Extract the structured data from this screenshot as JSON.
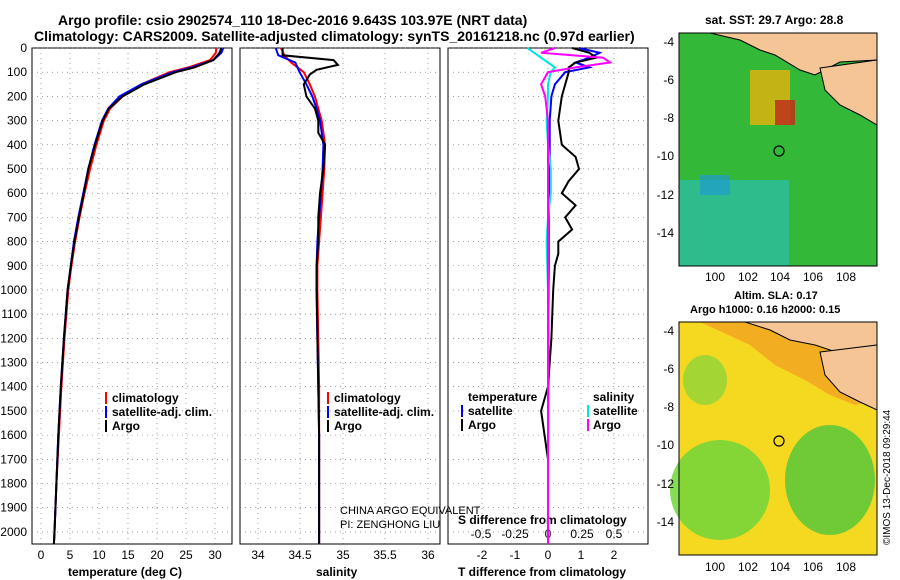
{
  "header": {
    "title_line1": "Argo profile: csio 2902574_110 18-Dec-2016 9.643S 103.97E (NRT data)",
    "title_line2": "Climatology: CARS2009. Satellite-adjusted climatology: synTS_20161218.nc (0.97d earlier)"
  },
  "colors": {
    "climatology": "#ff0000",
    "satellite": "#0000ff",
    "argo": "#000000",
    "satellite_sal": "#00e5e5",
    "argo_sal": "#ff00ff"
  },
  "depth_ticks": [
    0,
    100,
    200,
    300,
    400,
    500,
    600,
    700,
    800,
    900,
    1000,
    1100,
    1200,
    1300,
    1400,
    1500,
    1600,
    1700,
    1800,
    1900,
    2000
  ],
  "temperature_panel": {
    "xlabel": "temperature (deg C)",
    "x_ticks": [
      "0",
      "5",
      "10",
      "15",
      "20",
      "25",
      "30"
    ],
    "legend": {
      "climatology": "climatology",
      "satellite": "satellite-adj. clim.",
      "argo": "Argo"
    }
  },
  "salinity_panel": {
    "xlabel": "salinity",
    "x_ticks": [
      "34",
      "34.5",
      "35",
      "35.5",
      "36"
    ],
    "legend": {
      "climatology": "climatology",
      "satellite": "satellite-adj. clim.",
      "argo": "Argo"
    },
    "note_line1": "CHINA ARGO EQUIVALENT",
    "note_line2": "PI: ZENGHONG LIU"
  },
  "difference_panel": {
    "xlabel": "T difference from climatology",
    "xlabel_top": "S difference from climatology",
    "t_ticks": [
      "-2",
      "-1",
      "0",
      "1",
      "2"
    ],
    "s_ticks": [
      "-0.5",
      "-0.25",
      "0",
      "0.25",
      "0.5"
    ],
    "legend_temp_title": "temperature",
    "legend_temp_sat": "satellite",
    "legend_temp_argo": "Argo",
    "legend_sal_title": "salinity",
    "legend_sal_sat": "satellite",
    "legend_sal_argo": "Argo"
  },
  "sst_map": {
    "title": "sat. SST: 29.7 Argo: 28.8",
    "x_ticks": [
      "100",
      "102",
      "104",
      "106",
      "108"
    ],
    "y_ticks": [
      "-4",
      "-6",
      "-8",
      "-10",
      "-12",
      "-14"
    ]
  },
  "sla_map": {
    "title_line1": "Altim. SLA: 0.17",
    "title_line2": "Argo h1000: 0.16 h2000: 0.15",
    "x_ticks": [
      "100",
      "102",
      "104",
      "106",
      "108"
    ],
    "y_ticks": [
      "-4",
      "-6",
      "-8",
      "-10",
      "-12",
      "-14"
    ]
  },
  "credit": "©IMOS 13-Dec-2018 09:29:44",
  "chart_data": [
    {
      "type": "line",
      "xlabel": "temperature (deg C)",
      "ylim": [
        2050,
        0
      ],
      "xlim": [
        -1,
        31
      ],
      "series": [
        {
          "name": "climatology",
          "depth": [
            0,
            20,
            50,
            80,
            100,
            150,
            200,
            250,
            300,
            400,
            500,
            600,
            700,
            800,
            900,
            1000,
            1200,
            1400,
            1600,
            1800,
            2000,
            2050
          ],
          "values": [
            28.5,
            28.4,
            27.5,
            24,
            21,
            16.5,
            13.5,
            11.5,
            10.5,
            9.3,
            8.3,
            7.4,
            6.6,
            5.9,
            5.3,
            4.8,
            4.2,
            3.7,
            3.3,
            2.9,
            2.6,
            2.5
          ]
        },
        {
          "name": "satellite-adj. clim.",
          "depth": [
            0,
            20,
            50,
            80,
            100,
            150,
            200,
            250,
            300,
            400,
            500,
            600,
            700,
            800,
            900,
            1000,
            1200,
            1400,
            1600,
            1800,
            2000,
            2050
          ],
          "values": [
            29.6,
            29.3,
            28,
            24.5,
            21.5,
            16.5,
            13,
            11.2,
            10.2,
            9,
            8,
            7.2,
            6.4,
            5.7,
            5.2,
            4.7,
            4.1,
            3.6,
            3.2,
            2.9,
            2.6,
            2.5
          ]
        },
        {
          "name": "Argo",
          "depth": [
            0,
            20,
            50,
            80,
            100,
            150,
            200,
            250,
            300,
            400,
            500,
            600,
            700,
            800,
            900,
            1000,
            1200,
            1400,
            1600,
            1800,
            2000,
            2050
          ],
          "values": [
            29.3,
            29,
            28,
            25,
            22,
            17,
            13.5,
            11.3,
            10.3,
            9.1,
            8,
            7.3,
            6.5,
            5.8,
            5.2,
            4.7,
            4.1,
            3.6,
            3.2,
            2.9,
            2.6,
            2.5
          ]
        }
      ]
    },
    {
      "type": "line",
      "xlabel": "salinity",
      "ylim": [
        2050,
        0
      ],
      "xlim": [
        33.8,
        36.15
      ],
      "series": [
        {
          "name": "climatology",
          "depth": [
            0,
            30,
            60,
            100,
            150,
            200,
            250,
            300,
            400,
            500,
            600,
            700,
            800,
            900,
            1000,
            1200,
            1400,
            1600,
            1800,
            2000,
            2050
          ],
          "values": [
            34.28,
            34.32,
            34.4,
            34.55,
            34.62,
            34.68,
            34.72,
            34.76,
            34.8,
            34.79,
            34.77,
            34.75,
            34.73,
            34.71,
            34.71,
            34.72,
            34.73,
            34.73,
            34.73,
            34.73,
            34.73
          ]
        },
        {
          "name": "satellite-adj. clim.",
          "depth": [
            0,
            30,
            60,
            100,
            150,
            200,
            250,
            300,
            400,
            500,
            600,
            700,
            800,
            900,
            1000,
            1200,
            1400,
            1600,
            1800,
            2000,
            2050
          ],
          "values": [
            34.22,
            34.25,
            34.45,
            34.5,
            34.58,
            34.65,
            34.7,
            34.74,
            34.78,
            34.77,
            34.75,
            34.73,
            34.71,
            34.7,
            34.7,
            34.71,
            34.72,
            34.73,
            34.73,
            34.73,
            34.73
          ]
        },
        {
          "name": "Argo",
          "depth": [
            0,
            30,
            50,
            70,
            90,
            110,
            150,
            200,
            250,
            300,
            350,
            400,
            500,
            600,
            700,
            800,
            900,
            1000,
            1200,
            1400,
            1600,
            1800,
            2000,
            2050
          ],
          "values": [
            34.3,
            34.3,
            34.9,
            34.95,
            34.7,
            34.62,
            34.55,
            34.58,
            34.68,
            34.72,
            34.72,
            34.8,
            34.78,
            34.74,
            34.72,
            34.72,
            34.7,
            34.7,
            34.71,
            34.72,
            34.73,
            34.73,
            34.73,
            34.73
          ]
        }
      ]
    },
    {
      "type": "line",
      "xlabel": "T difference from climatology",
      "ylim": [
        2050,
        0
      ],
      "xlim": [
        -2.9,
        2.9
      ],
      "series": [
        {
          "name": "temperature satellite",
          "depth": [
            0,
            20,
            40,
            60,
            80,
            100,
            150,
            200,
            300,
            400,
            500,
            700,
            900,
            1100,
            1400,
            1700,
            2000,
            2050
          ],
          "values": [
            0.9,
            1.5,
            1.2,
            0.8,
            1.2,
            0.5,
            0.2,
            0.1,
            0.05,
            0.05,
            0.05,
            0.02,
            0.02,
            0.01,
            0.01,
            0.0,
            0.0,
            0.0
          ]
        },
        {
          "name": "temperature Argo",
          "depth": [
            0,
            20,
            40,
            60,
            80,
            100,
            200,
            300,
            400,
            450,
            500,
            550,
            600,
            650,
            700,
            750,
            800,
            850,
            900,
            1000,
            1200,
            1400,
            1500,
            1700,
            2000,
            2050
          ],
          "values": [
            0.7,
            1.2,
            1.4,
            0.8,
            0.6,
            0.6,
            0.4,
            0.3,
            0.4,
            0.8,
            0.9,
            0.6,
            0.4,
            0.8,
            0.5,
            0.7,
            0.3,
            0.3,
            0.2,
            0.15,
            0.1,
            0.0,
            -0.2,
            0.0,
            0.0,
            0.0
          ]
        },
        {
          "name": "salinity satellite",
          "depth": [
            0,
            20,
            40,
            60,
            80,
            100,
            150,
            200,
            300,
            400,
            500,
            600,
            700,
            800,
            1000,
            1200,
            1400,
            1600,
            1800,
            2000,
            2050
          ],
          "values": [
            -0.15,
            -0.1,
            -0.05,
            0.0,
            0.05,
            0.02,
            0.0,
            0.0,
            -0.01,
            0.0,
            0.02,
            0.02,
            0.0,
            -0.01,
            0.0,
            0.0,
            0.0,
            0.0,
            0.0,
            0.0,
            0.0
          ]
        },
        {
          "name": "salinity Argo",
          "depth": [
            0,
            20,
            40,
            60,
            80,
            100,
            150,
            200,
            300,
            400,
            500,
            600,
            700,
            800,
            1000,
            1200,
            1400,
            1600,
            1800,
            2000,
            2050
          ],
          "values": [
            0.05,
            -0.05,
            0.4,
            0.45,
            0.2,
            0.0,
            -0.05,
            -0.02,
            0.0,
            0.0,
            0.0,
            0.0,
            0.0,
            0.0,
            0.0,
            0.0,
            0.0,
            0.0,
            0.0,
            0.0,
            0.0
          ]
        }
      ]
    }
  ]
}
